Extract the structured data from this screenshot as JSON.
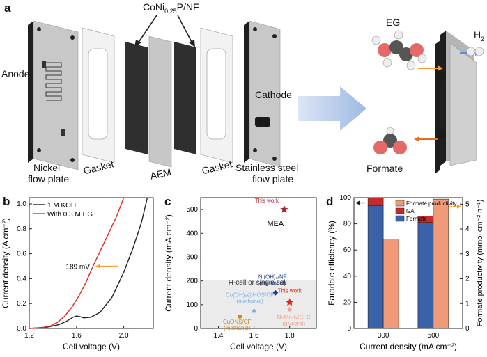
{
  "panels": {
    "a": {
      "letter": "a",
      "catalyst_label": "CoNi",
      "catalyst_sub": "0.25",
      "catalyst_suffix": "P/NF",
      "anode": "Anode",
      "nickel_plate_1": "Nickel",
      "nickel_plate_2": "flow plate",
      "gasket_left": "Gasket",
      "aem": "AEM",
      "gasket_right": "Gasket",
      "cathode": "Cathode",
      "steel_plate_1": "Stainless steel",
      "steel_plate_2": "flow plate",
      "eg": "EG",
      "h2": "H",
      "h2_sub": "2",
      "formate": "Formate"
    },
    "b": {
      "letter": "b"
    },
    "c": {
      "letter": "c"
    },
    "d": {
      "letter": "d"
    }
  },
  "colors": {
    "red": "#e0261f",
    "black": "#222222",
    "blue_bar": "#3a62a8",
    "dark_red_bar": "#c62a2a",
    "salmon_bar": "#f19a7a",
    "arrow_orange": "#f0a030",
    "arrow_blue": "#5b8dd6"
  },
  "chart_data": [
    {
      "type": "line",
      "panel": "b",
      "xlabel": "Cell voltage (V)",
      "ylabel": "Current density (A cm⁻²)",
      "xlim": [
        1.2,
        2.25
      ],
      "ylim": [
        0,
        1.05
      ],
      "xticks": [
        "1.2",
        "1.6",
        "2.0"
      ],
      "yticks": [
        "0.0",
        "0.2",
        "0.4",
        "0.6",
        "0.8",
        "1.0"
      ],
      "legend": "top-left",
      "series": [
        {
          "name": "1 M KOH",
          "color": "#222222",
          "x": [
            1.2,
            1.35,
            1.45,
            1.52,
            1.57,
            1.6,
            1.63,
            1.66,
            1.72,
            1.8,
            1.9,
            2.0,
            2.08,
            2.15,
            2.2
          ],
          "y": [
            0.0,
            0.01,
            0.03,
            0.06,
            0.09,
            0.1,
            0.095,
            0.085,
            0.09,
            0.13,
            0.25,
            0.45,
            0.65,
            0.85,
            1.05
          ]
        },
        {
          "name": "With 0.3 M EG",
          "color": "#e0261f",
          "x": [
            1.2,
            1.3,
            1.38,
            1.44,
            1.5,
            1.56,
            1.62,
            1.68,
            1.74,
            1.8,
            1.87,
            1.94,
            2.0
          ],
          "y": [
            0.0,
            0.005,
            0.02,
            0.05,
            0.1,
            0.17,
            0.26,
            0.37,
            0.5,
            0.62,
            0.76,
            0.9,
            1.05
          ]
        }
      ],
      "annotation": "189 mV"
    },
    {
      "type": "scatter",
      "panel": "c",
      "xlabel": "Cell voltage (V)",
      "ylabel": "Current density (mA cm⁻²)",
      "xlim": [
        1.3,
        1.95
      ],
      "ylim": [
        0,
        550
      ],
      "xticks": [
        "1.4",
        "1.6",
        "1.8"
      ],
      "yticks": [
        "0",
        "100",
        "200",
        "300",
        "400",
        "500"
      ],
      "region_labels": [
        "MEA",
        "H-cell or single cell"
      ],
      "points": [
        {
          "label": "This work",
          "x": 1.77,
          "y": 500,
          "marker": "star",
          "color": "#a8232a"
        },
        {
          "label": "This work",
          "x": 1.8,
          "y": 110,
          "marker": "star",
          "color": "#e0261f"
        },
        {
          "label": "Ni(OH)₂/NF",
          "sub": "(methanol)",
          "x": 1.72,
          "y": 150,
          "marker": "diamond",
          "color": "#1f3d7a"
        },
        {
          "label": "Co(OH)₂@HOS/CP",
          "sub": "(methanol)",
          "x": 1.6,
          "y": 75,
          "marker": "triangle",
          "color": "#7fb0e0"
        },
        {
          "label": "CuONS/CF",
          "sub": "(methanol)",
          "x": 1.52,
          "y": 50,
          "marker": "circle",
          "color": "#c98a10"
        },
        {
          "label": "Ni-Mo-N/CFC",
          "sub": "(glycerol)",
          "x": 1.8,
          "y": 80,
          "marker": "circle",
          "color": "#f0a090"
        }
      ]
    },
    {
      "type": "bar",
      "panel": "d",
      "xlabel": "Current density (mA cm⁻²)",
      "ylabel": "Faradaic efficiency (%)",
      "ylabel_right": "Formate productivity (mmol cm⁻² h⁻¹)",
      "categories": [
        "300",
        "500"
      ],
      "ylim": [
        0,
        100
      ],
      "ylim_right": [
        0,
        5.26
      ],
      "yticks": [
        "0",
        "20",
        "40",
        "60",
        "80",
        "100"
      ],
      "yticks_right": [
        "0",
        "1",
        "2",
        "3",
        "4",
        "5"
      ],
      "series": [
        {
          "name": "Formate",
          "values": [
            94,
            81
          ],
          "color": "#3a62a8"
        },
        {
          "name": "GA",
          "values": [
            6,
            5
          ],
          "color": "#c62a2a"
        },
        {
          "name": "Formate productivity",
          "values": [
            3.6,
            5.2
          ],
          "color": "#f19a7a"
        }
      ]
    }
  ]
}
